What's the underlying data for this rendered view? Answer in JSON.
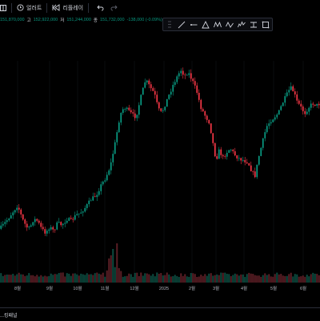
{
  "toolbar": {
    "alert_label": "얼러트",
    "replay_label": "리플레이"
  },
  "legend": {
    "open": "151,870,000",
    "high_key": "고",
    "high": "152,922,000",
    "low_key": "저",
    "low": "151,244,000",
    "close_key": "종",
    "close": "151,732,000",
    "change": "-138,000 (-0.09%)"
  },
  "draw_tools": [
    "trend-line-icon",
    "horizontal-ray-icon",
    "triangle-pattern-icon",
    "xabcd-pattern-icon",
    "abcd-pattern-icon",
    "elliott-wave-icon",
    "range-icon",
    "rectangle-icon"
  ],
  "bottom_panel": {
    "label": "...킹패널"
  },
  "colors": {
    "up": "#089981",
    "down": "#f23645",
    "background": "#000000",
    "grid": "#15171c"
  },
  "chart_data": {
    "type": "candlestick",
    "title": "",
    "xlabel": "",
    "ylabel": "",
    "grid": false,
    "x_ticks": [
      "8월",
      "9월",
      "10월",
      "11월",
      "12월",
      "2025",
      "2월",
      "3월",
      "4월",
      "5월",
      "6월"
    ],
    "price_path": [
      [
        0,
        84
      ],
      [
        8,
        80
      ],
      [
        15,
        76
      ],
      [
        22,
        72
      ],
      [
        28,
        79
      ],
      [
        33,
        83
      ],
      [
        37,
        84
      ],
      [
        42,
        79
      ],
      [
        47,
        80
      ],
      [
        52,
        84
      ],
      [
        57,
        86
      ],
      [
        62,
        83
      ],
      [
        67,
        85
      ],
      [
        72,
        81
      ],
      [
        77,
        82
      ],
      [
        84,
        79
      ],
      [
        89,
        80
      ],
      [
        95,
        77
      ],
      [
        100,
        76
      ],
      [
        107,
        73
      ],
      [
        114,
        69
      ],
      [
        120,
        67
      ],
      [
        126,
        62
      ],
      [
        132,
        58
      ],
      [
        138,
        52
      ],
      [
        144,
        40
      ],
      [
        150,
        26
      ],
      [
        155,
        22
      ],
      [
        161,
        24
      ],
      [
        166,
        26
      ],
      [
        170,
        27
      ],
      [
        176,
        17
      ],
      [
        182,
        8
      ],
      [
        188,
        12
      ],
      [
        193,
        15
      ],
      [
        198,
        23
      ],
      [
        202,
        25
      ],
      [
        207,
        20
      ],
      [
        212,
        15
      ],
      [
        217,
        10
      ],
      [
        222,
        6
      ],
      [
        226,
        3
      ],
      [
        231,
        6
      ],
      [
        235,
        4
      ],
      [
        240,
        8
      ],
      [
        246,
        14
      ],
      [
        251,
        22
      ],
      [
        256,
        26
      ],
      [
        262,
        30
      ],
      [
        266,
        40
      ],
      [
        270,
        49
      ],
      [
        274,
        44
      ],
      [
        279,
        48
      ],
      [
        283,
        45
      ],
      [
        288,
        43
      ],
      [
        293,
        46
      ],
      [
        298,
        48
      ],
      [
        304,
        49
      ],
      [
        310,
        50
      ],
      [
        315,
        55
      ],
      [
        319,
        57
      ],
      [
        323,
        48
      ],
      [
        328,
        40
      ],
      [
        333,
        32
      ],
      [
        338,
        29
      ],
      [
        343,
        27
      ],
      [
        348,
        25
      ],
      [
        353,
        20
      ],
      [
        358,
        16
      ],
      [
        363,
        12
      ],
      [
        367,
        14
      ],
      [
        371,
        19
      ],
      [
        376,
        22
      ],
      [
        381,
        25
      ],
      [
        386,
        22
      ],
      [
        391,
        20
      ],
      [
        396,
        21
      ],
      [
        400,
        20
      ]
    ],
    "volume_spikes": [
      [
        25,
        9
      ],
      [
        60,
        8
      ],
      [
        105,
        11
      ],
      [
        128,
        13
      ],
      [
        136,
        26
      ],
      [
        140,
        49
      ],
      [
        146,
        38
      ],
      [
        150,
        21
      ],
      [
        157,
        9
      ],
      [
        186,
        8
      ],
      [
        220,
        10
      ],
      [
        238,
        8
      ],
      [
        270,
        7
      ],
      [
        310,
        9
      ],
      [
        350,
        8
      ]
    ],
    "volume_baseline": 5
  }
}
